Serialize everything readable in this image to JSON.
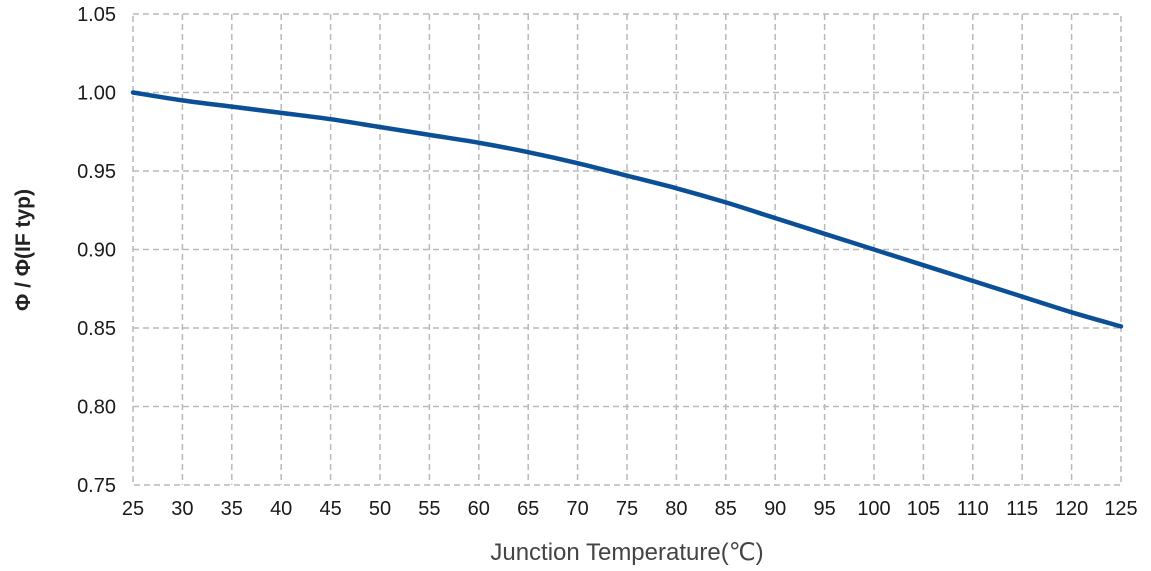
{
  "chart_data": {
    "type": "line",
    "title": "",
    "xlabel": "Junction Temperature(℃)",
    "ylabel": "Φ / Φ(IF typ)",
    "xlim": [
      25,
      125
    ],
    "ylim": [
      0.75,
      1.05
    ],
    "x_ticks": [
      "25",
      "30",
      "35",
      "40",
      "45",
      "50",
      "55",
      "60",
      "65",
      "70",
      "75",
      "80",
      "85",
      "90",
      "95",
      "100",
      "105",
      "110",
      "115",
      "120",
      "125"
    ],
    "y_ticks": [
      "0.75",
      "0.80",
      "0.85",
      "0.90",
      "0.95",
      "1.00",
      "1.05"
    ],
    "grid": true,
    "line_color": "#0b4f96",
    "grid_color": "#b9b9b9",
    "series": [
      {
        "x": [
          25,
          30,
          35,
          40,
          45,
          50,
          55,
          60,
          65,
          70,
          75,
          80,
          85,
          90,
          95,
          100,
          105,
          110,
          115,
          120,
          125
        ],
        "values": [
          1.0,
          0.995,
          0.991,
          0.987,
          0.983,
          0.978,
          0.973,
          0.968,
          0.962,
          0.955,
          0.947,
          0.939,
          0.93,
          0.92,
          0.91,
          0.9,
          0.89,
          0.88,
          0.87,
          0.86,
          0.851
        ]
      }
    ]
  }
}
